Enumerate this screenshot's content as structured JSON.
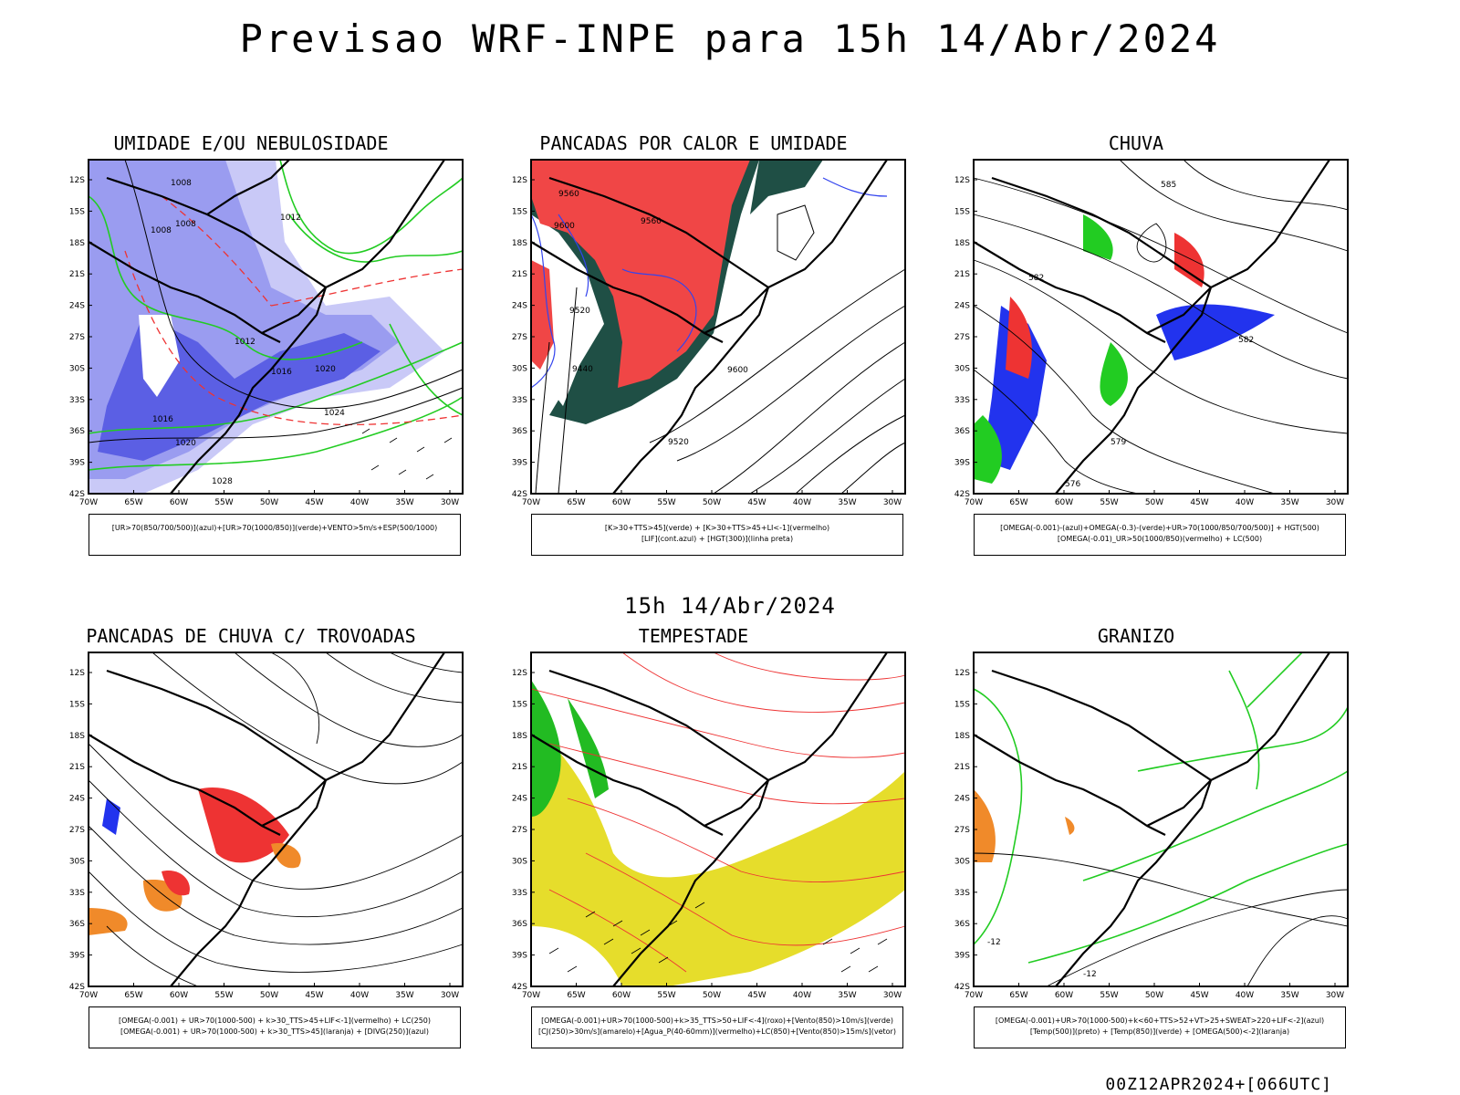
{
  "main_title": "Previsao WRF-INPE  para 15h 14/Abr/2024",
  "mid_title": "15h 14/Abr/2024",
  "footer": "00Z12APR2024+[066UTC]",
  "axes": {
    "lat_labels": [
      "12S",
      "15S",
      "18S",
      "21S",
      "24S",
      "27S",
      "30S",
      "33S",
      "36S",
      "39S",
      "42S"
    ],
    "lon_labels": [
      "70W",
      "65W",
      "60W",
      "55W",
      "50W",
      "45W",
      "40W",
      "35W",
      "30W"
    ]
  },
  "panels": [
    {
      "title": "UMIDADE E/OU NEBULOSIDADE",
      "legend": [
        "[UR>70(850/700/500)](azul)+[UR>70(1000/850)](verde)+VENTO>5m/s+ESP(500/1000)"
      ],
      "contour_labels": [
        "1008",
        "1008",
        "1008",
        "1012",
        "1012",
        "1016",
        "1020",
        "1016",
        "1020",
        "1024",
        "1028"
      ],
      "colors": {
        "fill": "#8f91ee",
        "fill_dark": "#3b3fd9",
        "contour": "#22cc22",
        "dashed": "#ee3333"
      }
    },
    {
      "title": "PANCADAS POR CALOR E UMIDADE",
      "legend": [
        "[K>30+TTS>45](verde) + [K>30+TTS>45+LI<-1](vermelho)",
        "[LIF](cont.azul) + [HGT(300)](linha preta)"
      ],
      "contour_labels": [
        "9560",
        "9560",
        "9600",
        "9520",
        "9440",
        "9520",
        "9600"
      ],
      "colors": {
        "fill_green": "#1f4f45",
        "fill_red": "#f04646",
        "contour_blue": "#3344ee"
      }
    },
    {
      "title": "CHUVA",
      "legend": [
        "[OMEGA(-0.001)-(azul)+OMEGA(-0.3)-(verde)+UR>70(1000/850/700/500)] + HGT(500)",
        "[OMEGA(-0.01)_UR>50(1000/850)(vermelho) + LC(500)"
      ],
      "contour_labels": [
        "585",
        "582",
        "579",
        "576",
        "582"
      ],
      "colors": {
        "blue": "#2233ee",
        "green": "#22cc22",
        "red": "#ee3333"
      }
    },
    {
      "title": "PANCADAS DE CHUVA C/ TROVOADAS",
      "legend": [
        "[OMEGA(-0.001) + UR>70(1000-500) + k>30_TTS>45+LIF<-1](vermelho) + LC(250)",
        "[OMEGA(-0.001) + UR>70(1000-500) + k>30_TTS>45](laranja) + [DIVG(250)](azul)"
      ],
      "contour_labels": [],
      "colors": {
        "red": "#ee3333",
        "orange": "#f08a2a",
        "blue": "#2233ee"
      }
    },
    {
      "title": "TEMPESTADE",
      "legend": [
        "[OMEGA(-0.001)+UR>70(1000-500)+k>35_TTS>50+LIF<-4](roxo)+[Vento(850)>10m/s](verde)",
        "[CJ(250)>30m/s](amarelo)+[Agua_P(40-60mm)](vermelho)+LC(850)+[Vento(850)>15m/s](vetor)"
      ],
      "contour_labels": [],
      "colors": {
        "yellow": "#e6dd2b",
        "green": "#22bb22",
        "red": "#ee3333"
      }
    },
    {
      "title": "GRANIZO",
      "legend": [
        "[OMEGA(-0.001)+UR>70(1000-500)+k<60+TTS>52+VT>25+SWEAT>220+LIF<-2](azul)",
        "[Temp(500)](preto) + [Temp(850)](verde) + [OMEGA(500)<-2](laranja)"
      ],
      "contour_labels": [
        "-12",
        "-12"
      ],
      "colors": {
        "green": "#22cc22",
        "orange": "#f08a2a"
      }
    }
  ]
}
